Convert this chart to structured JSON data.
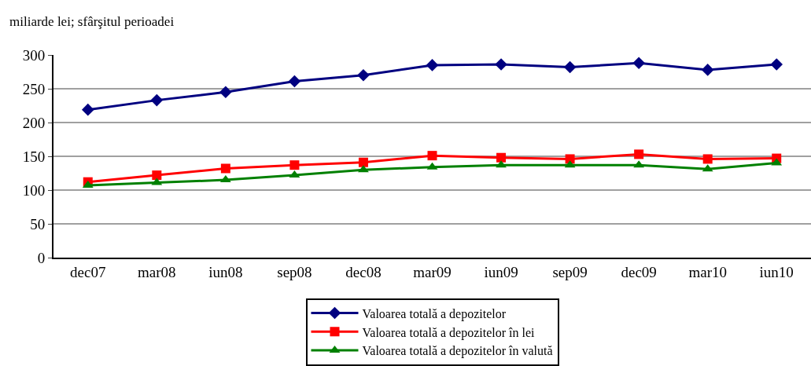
{
  "chart_data": {
    "type": "line",
    "ylabel": "miliarde lei; sfârşitul perioadei",
    "categories": [
      "dec07",
      "mar08",
      "iun08",
      "sep08",
      "dec08",
      "mar09",
      "iun09",
      "sep09",
      "dec09",
      "mar10",
      "iun10"
    ],
    "series": [
      {
        "name": "Valoarea totală a depozitelor",
        "color": "#000080",
        "marker": "diamond",
        "values": [
          219,
          233,
          245,
          261,
          270,
          285,
          286,
          282,
          288,
          278,
          286
        ]
      },
      {
        "name": "Valoarea totală a depozitelor în lei",
        "color": "#ff0000",
        "marker": "square",
        "values": [
          112,
          122,
          132,
          137,
          141,
          151,
          148,
          146,
          153,
          146,
          147
        ]
      },
      {
        "name": "Valoarea totală a depozitelor în valută",
        "color": "#008000",
        "marker": "triangle",
        "values": [
          107,
          111,
          115,
          122,
          130,
          134,
          137,
          137,
          137,
          131,
          140
        ]
      }
    ],
    "ylim": [
      0,
      300
    ],
    "yticks": [
      0,
      50,
      100,
      150,
      200,
      250,
      300
    ],
    "grid": "y",
    "legend": "bottom",
    "line_style": "solid"
  }
}
